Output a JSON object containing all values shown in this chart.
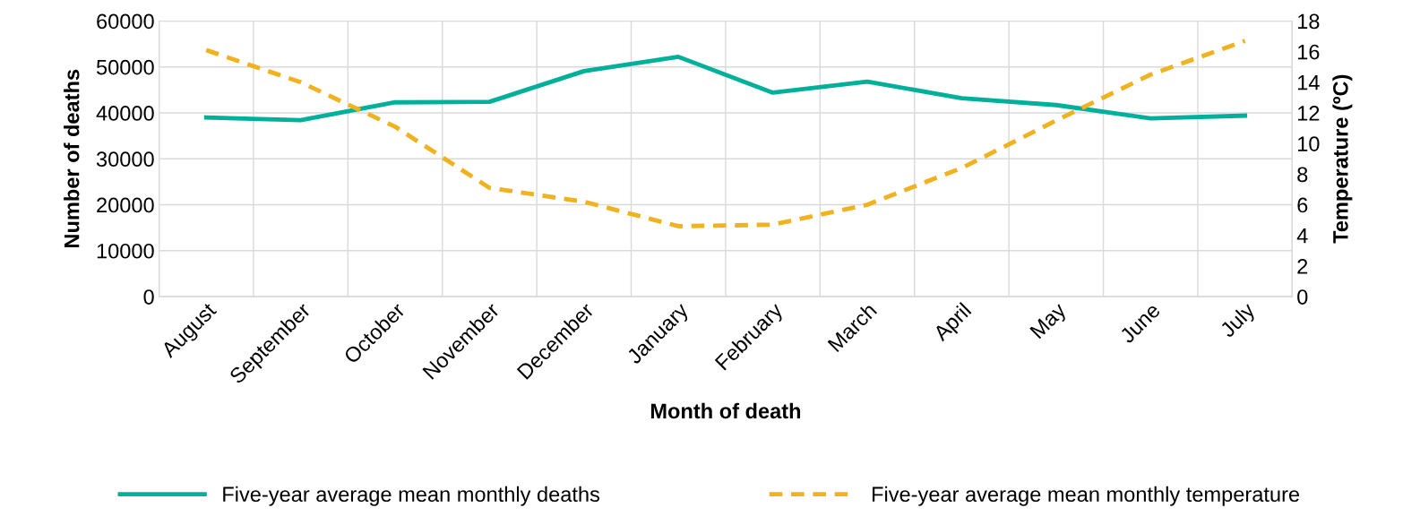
{
  "chart_data": {
    "type": "line",
    "xlabel": "Month of death",
    "ylabel": "Number of deaths",
    "y2label": "Temperature (ºC)",
    "categories": [
      "August",
      "September",
      "October",
      "November",
      "December",
      "January",
      "February",
      "March",
      "April",
      "May",
      "June",
      "July"
    ],
    "series": [
      {
        "name": "Five-year average mean monthly deaths",
        "color": "#00b09b",
        "line_style": "solid",
        "values": [
          39000,
          38400,
          42300,
          42400,
          49100,
          52200,
          44400,
          46800,
          43200,
          41700,
          38800,
          39400
        ]
      },
      {
        "name": "Five-year average mean monthly temperature",
        "color": "#f0b21e",
        "line_style": "dashed",
        "axis": "y2",
        "values": [
          16.1,
          14.0,
          11.1,
          7.1,
          6.2,
          4.6,
          4.7,
          6.0,
          8.4,
          11.5,
          14.5,
          16.7
        ]
      }
    ],
    "ylim": [
      0,
      60000
    ],
    "yticks": [
      0,
      10000,
      20000,
      30000,
      40000,
      50000,
      60000
    ],
    "y2lim": [
      0,
      18
    ],
    "y2ticks": [
      0,
      2,
      4,
      6,
      8,
      10,
      12,
      14,
      16,
      18
    ],
    "grid": true,
    "legend": "bottom",
    "marker": "none"
  }
}
